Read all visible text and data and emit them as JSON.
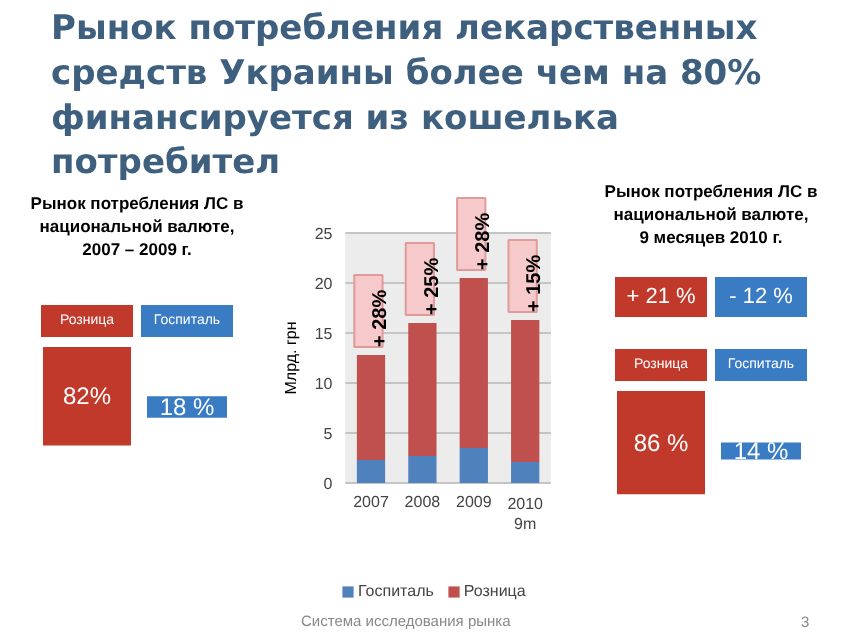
{
  "chart_data": [
    {
      "type": "other",
      "title": "Рынок потребления ЛС в национальной валюте, 2007 – 2009 г.",
      "categories": [
        "Розница",
        "Госпиталь"
      ],
      "values": [
        82,
        18
      ],
      "value_labels": [
        "82%",
        "18 %"
      ],
      "colors": [
        "#c0392b",
        "#3a7cc4"
      ]
    },
    {
      "type": "bar",
      "title": "Рынок потребления лекарственных средств Украины более чем на 80% финансируется из кошелька потребител",
      "ylabel": "Млрд. грн",
      "stacked": true,
      "categories": [
        "2007",
        "2008",
        "2009",
        "2010\n9m"
      ],
      "series": [
        {
          "name": "Госпиталь",
          "color": "#4f81bd",
          "values": [
            2.3,
            2.7,
            3.5,
            2.1
          ]
        },
        {
          "name": "Розница",
          "color": "#c0504d",
          "values": [
            10.5,
            13.3,
            17.0,
            14.2
          ]
        }
      ],
      "ylim": [
        0,
        25
      ],
      "yticks": [
        0,
        5,
        10,
        15,
        20,
        25
      ],
      "grid": "y",
      "legend": "bottom",
      "annotations": [
        "+ 28%",
        "+ 25%",
        "+ 28%",
        "+ 15%",
        "Система исследования рынка",
        "3"
      ]
    },
    {
      "type": "other",
      "title": "Рынок потребления ЛС в национальной валюте, 9 месяцев 2010 г.",
      "categories": [
        "Розница",
        "Госпиталь"
      ],
      "values": [
        86,
        14
      ],
      "value_labels": [
        "86 %",
        "14 %"
      ],
      "colors": [
        "#c0392b",
        "#3a7cc4"
      ],
      "annotations": [
        "+ 21 %",
        "- 12 %"
      ]
    }
  ]
}
